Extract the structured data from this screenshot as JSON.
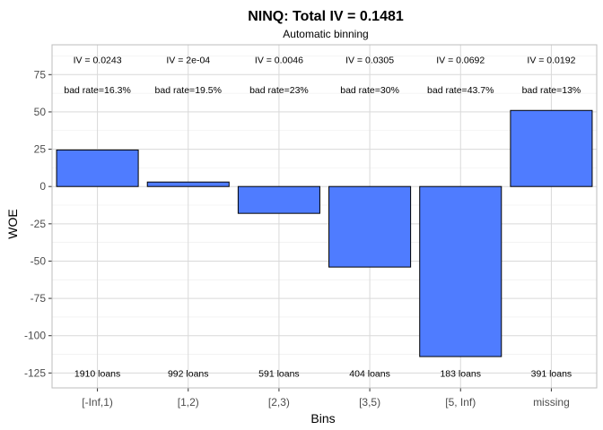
{
  "chart_data": {
    "type": "bar",
    "title": "NINQ: Total IV = 0.1481",
    "subtitle": "Automatic binning",
    "xlabel": "Bins",
    "ylabel": "WOE",
    "categories": [
      "[-Inf,1)",
      "[1,2)",
      "[2,3)",
      "[3,5)",
      "[5, Inf)",
      "missing"
    ],
    "values": [
      24.5,
      3.0,
      -18.0,
      -54.0,
      -114.0,
      51.0
    ],
    "iv_labels": [
      "IV = 0.0243",
      "IV = 2e-04",
      "IV = 0.0046",
      "IV = 0.0305",
      "IV = 0.0692",
      "IV = 0.0192"
    ],
    "bad_rate_labels": [
      "bad rate=16.3%",
      "bad rate=19.5%",
      "bad rate=23%",
      "bad rate=30%",
      "bad rate=43.7%",
      "bad rate=13%"
    ],
    "count_labels": [
      "1910 loans",
      "992 loans",
      "591 loans",
      "404 loans",
      "183 loans",
      "391 loans"
    ],
    "iv_label_y": 85,
    "bad_rate_label_y": 65,
    "count_label_y": -125,
    "ylim": [
      -135,
      95
    ],
    "yticks": [
      75,
      50,
      25,
      0,
      -25,
      -50,
      -75,
      -100,
      -125
    ],
    "ytick_labels": [
      "75",
      "50",
      "25",
      "0",
      "-25",
      "-50",
      "-75",
      "-100",
      "-125"
    ],
    "grid": true,
    "bar_color": "#4f7cff",
    "legend": "none"
  }
}
